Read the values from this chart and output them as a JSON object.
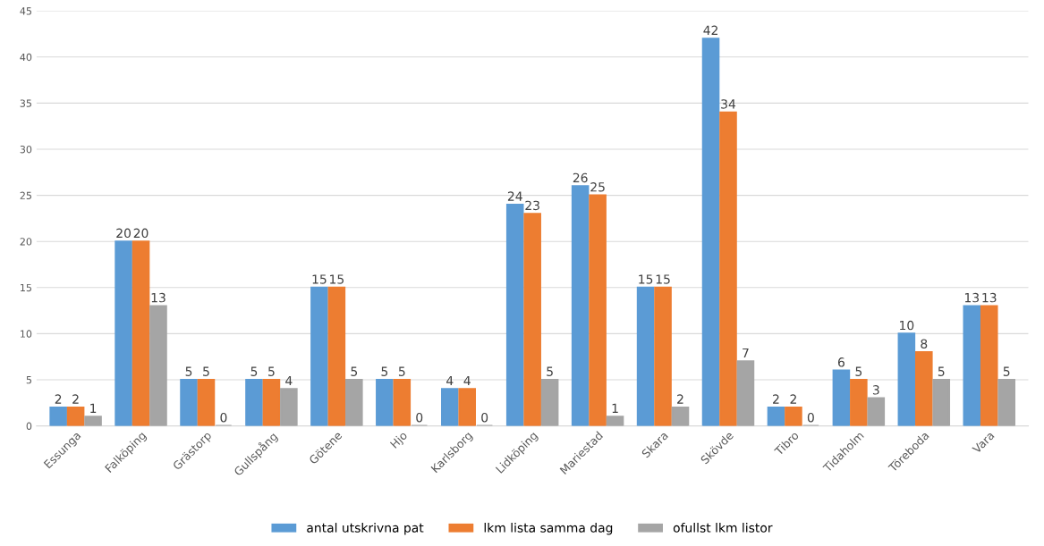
{
  "chart_data": {
    "type": "bar",
    "categories": [
      "Essunga",
      "Falköping",
      "Grästorp",
      "Gullspång",
      "Götene",
      "Hjo",
      "Karlsborg",
      "Lidköping",
      "Mariestad",
      "Skara",
      "Skövde",
      "Tibro",
      "Tidaholm",
      "Töreboda",
      "Vara"
    ],
    "series": [
      {
        "name": "antal utskrivna pat",
        "color": "#5b9bd5",
        "values": [
          2,
          20,
          5,
          5,
          15,
          5,
          4,
          24,
          26,
          15,
          42,
          2,
          6,
          10,
          13
        ]
      },
      {
        "name": "lkm lista samma dag",
        "color": "#ed7d31",
        "values": [
          2,
          20,
          5,
          5,
          15,
          5,
          4,
          23,
          25,
          15,
          34,
          2,
          5,
          8,
          13
        ]
      },
      {
        "name": "ofullst lkm listor",
        "color": "#a5a5a5",
        "values": [
          1,
          13,
          0,
          4,
          5,
          0,
          0,
          5,
          1,
          2,
          7,
          0,
          3,
          5,
          5
        ]
      }
    ],
    "ylim": [
      0,
      45
    ],
    "yticks": [
      0,
      5,
      10,
      15,
      20,
      25,
      30,
      35,
      40,
      45
    ],
    "grid": "y",
    "legend": "bottom",
    "data_labels": true
  }
}
